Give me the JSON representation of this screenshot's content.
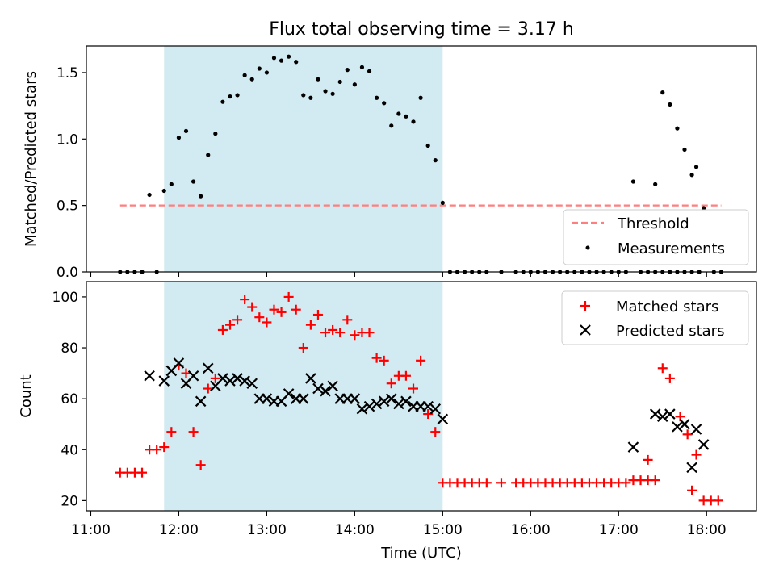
{
  "title": "Flux total observing time = 3.17 h",
  "shade": {
    "start": "11:50",
    "end": "15:00",
    "color": "#add8e6"
  },
  "x_axis": {
    "label": "Time (UTC)",
    "range": [
      "10:57",
      "18:34"
    ],
    "ticks": [
      "11:00",
      "12:00",
      "13:00",
      "14:00",
      "15:00",
      "16:00",
      "17:00",
      "18:00"
    ]
  },
  "chart_data": [
    {
      "type": "scatter",
      "ylabel": "Matched/Predicted stars",
      "ylim": [
        0,
        1.7
      ],
      "yticks": [
        0.0,
        0.5,
        1.0,
        1.5
      ],
      "legend": {
        "position": "lower-right",
        "entries": [
          "Threshold",
          "Measurements"
        ]
      },
      "threshold": {
        "name": "Threshold",
        "value": 0.5,
        "x_start": "11:20",
        "x_end": "18:10",
        "color": "#ff7f7f",
        "style": "dashed"
      },
      "series": [
        {
          "name": "Measurements",
          "color": "#000000",
          "marker": "dot",
          "points": [
            [
              "11:20",
              0.0
            ],
            [
              "11:25",
              0.0
            ],
            [
              "11:30",
              0.0
            ],
            [
              "11:35",
              0.0
            ],
            [
              "11:45",
              0.0
            ],
            [
              "11:40",
              0.58
            ],
            [
              "11:50",
              0.61
            ],
            [
              "11:55",
              0.66
            ],
            [
              "12:00",
              1.01
            ],
            [
              "12:05",
              1.06
            ],
            [
              "12:10",
              0.68
            ],
            [
              "12:15",
              0.57
            ],
            [
              "12:20",
              0.88
            ],
            [
              "12:25",
              1.04
            ],
            [
              "12:30",
              1.28
            ],
            [
              "12:35",
              1.32
            ],
            [
              "12:40",
              1.33
            ],
            [
              "12:45",
              1.48
            ],
            [
              "12:50",
              1.45
            ],
            [
              "12:55",
              1.53
            ],
            [
              "13:00",
              1.5
            ],
            [
              "13:05",
              1.61
            ],
            [
              "13:10",
              1.59
            ],
            [
              "13:15",
              1.62
            ],
            [
              "13:20",
              1.58
            ],
            [
              "13:25",
              1.33
            ],
            [
              "13:30",
              1.31
            ],
            [
              "13:35",
              1.45
            ],
            [
              "13:40",
              1.36
            ],
            [
              "13:45",
              1.34
            ],
            [
              "13:50",
              1.43
            ],
            [
              "13:55",
              1.52
            ],
            [
              "14:00",
              1.41
            ],
            [
              "14:05",
              1.54
            ],
            [
              "14:10",
              1.51
            ],
            [
              "14:15",
              1.31
            ],
            [
              "14:20",
              1.27
            ],
            [
              "14:25",
              1.1
            ],
            [
              "14:30",
              1.19
            ],
            [
              "14:35",
              1.17
            ],
            [
              "14:40",
              1.13
            ],
            [
              "14:45",
              1.31
            ],
            [
              "14:50",
              0.95
            ],
            [
              "14:55",
              0.84
            ],
            [
              "15:00",
              0.52
            ],
            [
              "15:05",
              0.0
            ],
            [
              "15:10",
              0.0
            ],
            [
              "15:15",
              0.0
            ],
            [
              "15:20",
              0.0
            ],
            [
              "15:25",
              0.0
            ],
            [
              "15:30",
              0.0
            ],
            [
              "15:40",
              0.0
            ],
            [
              "15:50",
              0.0
            ],
            [
              "15:55",
              0.0
            ],
            [
              "16:00",
              0.0
            ],
            [
              "16:05",
              0.0
            ],
            [
              "16:10",
              0.0
            ],
            [
              "16:15",
              0.0
            ],
            [
              "16:20",
              0.0
            ],
            [
              "16:25",
              0.0
            ],
            [
              "16:30",
              0.0
            ],
            [
              "16:35",
              0.0
            ],
            [
              "16:40",
              0.0
            ],
            [
              "16:45",
              0.0
            ],
            [
              "16:50",
              0.0
            ],
            [
              "16:55",
              0.0
            ],
            [
              "17:00",
              0.0
            ],
            [
              "17:05",
              0.0
            ],
            [
              "17:15",
              0.0
            ],
            [
              "17:20",
              0.0
            ],
            [
              "17:25",
              0.0
            ],
            [
              "17:30",
              0.0
            ],
            [
              "17:35",
              0.0
            ],
            [
              "17:40",
              0.0
            ],
            [
              "17:45",
              0.0
            ],
            [
              "17:50",
              0.0
            ],
            [
              "17:55",
              0.0
            ],
            [
              "18:05",
              0.0
            ],
            [
              "18:10",
              0.0
            ],
            [
              "17:10",
              0.68
            ],
            [
              "17:25",
              0.66
            ],
            [
              "17:30",
              1.35
            ],
            [
              "17:35",
              1.26
            ],
            [
              "17:40",
              1.08
            ],
            [
              "17:45",
              0.92
            ],
            [
              "17:50",
              0.73
            ],
            [
              "17:53",
              0.79
            ],
            [
              "17:58",
              0.48
            ]
          ]
        }
      ]
    },
    {
      "type": "scatter",
      "ylabel": "Count",
      "ylim": [
        16,
        106
      ],
      "yticks": [
        20,
        40,
        60,
        80,
        100
      ],
      "legend": {
        "position": "upper-right",
        "entries": [
          "Matched stars",
          "Predicted stars"
        ]
      },
      "series": [
        {
          "name": "Matched stars",
          "color": "#ff0000",
          "marker": "plus",
          "points": [
            [
              "11:20",
              31
            ],
            [
              "11:25",
              31
            ],
            [
              "11:30",
              31
            ],
            [
              "11:35",
              31
            ],
            [
              "11:40",
              40
            ],
            [
              "11:45",
              40
            ],
            [
              "11:50",
              41
            ],
            [
              "11:55",
              47
            ],
            [
              "12:00",
              73
            ],
            [
              "12:05",
              70
            ],
            [
              "12:10",
              47
            ],
            [
              "12:15",
              34
            ],
            [
              "12:20",
              64
            ],
            [
              "12:25",
              68
            ],
            [
              "12:30",
              87
            ],
            [
              "12:35",
              89
            ],
            [
              "12:40",
              91
            ],
            [
              "12:45",
              99
            ],
            [
              "12:50",
              96
            ],
            [
              "12:55",
              92
            ],
            [
              "13:00",
              90
            ],
            [
              "13:05",
              95
            ],
            [
              "13:10",
              94
            ],
            [
              "13:15",
              100
            ],
            [
              "13:20",
              95
            ],
            [
              "13:25",
              80
            ],
            [
              "13:30",
              89
            ],
            [
              "13:35",
              93
            ],
            [
              "13:40",
              86
            ],
            [
              "13:45",
              87
            ],
            [
              "13:50",
              86
            ],
            [
              "13:55",
              91
            ],
            [
              "14:00",
              85
            ],
            [
              "14:05",
              86
            ],
            [
              "14:10",
              86
            ],
            [
              "14:15",
              76
            ],
            [
              "14:20",
              75
            ],
            [
              "14:25",
              66
            ],
            [
              "14:30",
              69
            ],
            [
              "14:35",
              69
            ],
            [
              "14:40",
              64
            ],
            [
              "14:45",
              75
            ],
            [
              "14:50",
              54
            ],
            [
              "14:55",
              47
            ],
            [
              "15:00",
              27
            ],
            [
              "15:05",
              27
            ],
            [
              "15:10",
              27
            ],
            [
              "15:15",
              27
            ],
            [
              "15:20",
              27
            ],
            [
              "15:25",
              27
            ],
            [
              "15:30",
              27
            ],
            [
              "15:40",
              27
            ],
            [
              "15:50",
              27
            ],
            [
              "15:55",
              27
            ],
            [
              "16:00",
              27
            ],
            [
              "16:05",
              27
            ],
            [
              "16:10",
              27
            ],
            [
              "16:15",
              27
            ],
            [
              "16:20",
              27
            ],
            [
              "16:25",
              27
            ],
            [
              "16:30",
              27
            ],
            [
              "16:35",
              27
            ],
            [
              "16:40",
              27
            ],
            [
              "16:45",
              27
            ],
            [
              "16:50",
              27
            ],
            [
              "16:55",
              27
            ],
            [
              "17:00",
              27
            ],
            [
              "17:05",
              27
            ],
            [
              "17:10",
              28
            ],
            [
              "17:15",
              28
            ],
            [
              "17:20",
              28
            ],
            [
              "17:25",
              28
            ],
            [
              "17:20",
              36
            ],
            [
              "17:30",
              72
            ],
            [
              "17:35",
              68
            ],
            [
              "17:42",
              53
            ],
            [
              "17:47",
              46
            ],
            [
              "17:50",
              24
            ],
            [
              "17:53",
              38
            ],
            [
              "17:58",
              20
            ],
            [
              "18:03",
              20
            ],
            [
              "18:08",
              20
            ]
          ]
        },
        {
          "name": "Predicted stars",
          "color": "#000000",
          "marker": "x",
          "points": [
            [
              "11:40",
              69
            ],
            [
              "11:50",
              67
            ],
            [
              "11:55",
              71
            ],
            [
              "12:00",
              74
            ],
            [
              "12:05",
              66
            ],
            [
              "12:10",
              69
            ],
            [
              "12:15",
              59
            ],
            [
              "12:20",
              72
            ],
            [
              "12:25",
              65
            ],
            [
              "12:30",
              68
            ],
            [
              "12:35",
              67
            ],
            [
              "12:40",
              68
            ],
            [
              "12:45",
              67
            ],
            [
              "12:50",
              66
            ],
            [
              "12:55",
              60
            ],
            [
              "13:00",
              60
            ],
            [
              "13:05",
              59
            ],
            [
              "13:10",
              59
            ],
            [
              "13:15",
              62
            ],
            [
              "13:20",
              60
            ],
            [
              "13:25",
              60
            ],
            [
              "13:30",
              68
            ],
            [
              "13:35",
              64
            ],
            [
              "13:40",
              63
            ],
            [
              "13:45",
              65
            ],
            [
              "13:50",
              60
            ],
            [
              "13:55",
              60
            ],
            [
              "14:00",
              60
            ],
            [
              "14:05",
              56
            ],
            [
              "14:10",
              57
            ],
            [
              "14:15",
              58
            ],
            [
              "14:20",
              59
            ],
            [
              "14:25",
              60
            ],
            [
              "14:30",
              58
            ],
            [
              "14:35",
              59
            ],
            [
              "14:40",
              57
            ],
            [
              "14:45",
              57
            ],
            [
              "14:50",
              57
            ],
            [
              "14:55",
              56
            ],
            [
              "15:00",
              52
            ],
            [
              "17:10",
              41
            ],
            [
              "17:25",
              54
            ],
            [
              "17:30",
              53
            ],
            [
              "17:35",
              54
            ],
            [
              "17:40",
              49
            ],
            [
              "17:45",
              50
            ],
            [
              "17:50",
              33
            ],
            [
              "17:53",
              48
            ],
            [
              "17:58",
              42
            ]
          ]
        }
      ]
    }
  ]
}
